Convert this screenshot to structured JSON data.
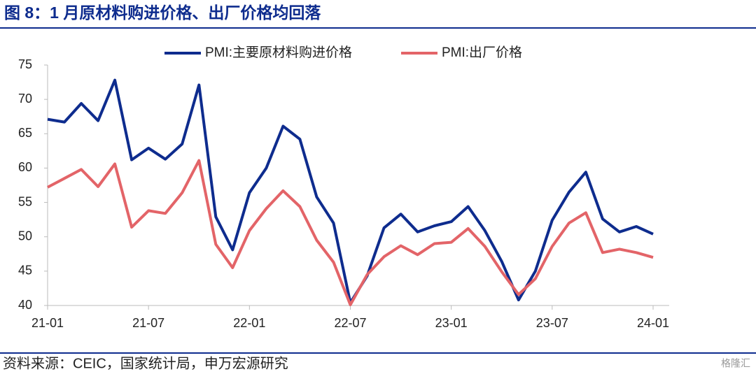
{
  "chart_data": {
    "type": "line",
    "title": "图 8：1 月原材料购进价格、出厂价格均回落",
    "source": "资料来源：CEIC，国家统计局，申万宏源研究",
    "watermark": "格隆汇",
    "categories": [
      "21-01",
      null,
      null,
      null,
      null,
      null,
      "21-07",
      null,
      null,
      null,
      null,
      null,
      "22-01",
      null,
      null,
      null,
      null,
      null,
      "22-07",
      null,
      null,
      null,
      null,
      null,
      "23-01",
      null,
      null,
      null,
      null,
      null,
      "23-07",
      null,
      null,
      null,
      null,
      null,
      "24-01"
    ],
    "series": [
      {
        "name": "PMI:主要原材料购进价格",
        "color": "#0e2c8e",
        "values": [
          67.1,
          66.7,
          69.4,
          66.9,
          72.8,
          61.2,
          62.9,
          61.3,
          63.5,
          72.1,
          52.9,
          48.1,
          56.4,
          60.0,
          66.1,
          64.2,
          55.8,
          52.0,
          40.4,
          44.3,
          51.3,
          53.3,
          50.7,
          51.6,
          52.2,
          54.4,
          50.9,
          46.4,
          40.8,
          45.0,
          52.4,
          56.5,
          59.4,
          52.6,
          50.7,
          51.5,
          50.4
        ]
      },
      {
        "name": "PMI:出厂价格",
        "color": "#e36468",
        "values": [
          57.2,
          58.5,
          59.8,
          57.3,
          60.6,
          51.4,
          53.8,
          53.4,
          56.4,
          61.1,
          48.9,
          45.5,
          50.9,
          54.1,
          56.7,
          54.4,
          49.5,
          46.3,
          40.1,
          44.5,
          47.1,
          48.7,
          47.4,
          49.0,
          49.2,
          51.2,
          48.6,
          44.9,
          41.6,
          43.9,
          48.6,
          52.0,
          53.5,
          47.7,
          48.2,
          47.7,
          47.0
        ]
      }
    ],
    "ylim": [
      40,
      75
    ],
    "yticks": [
      40,
      45,
      50,
      55,
      60,
      65,
      70,
      75
    ],
    "grid": false
  }
}
